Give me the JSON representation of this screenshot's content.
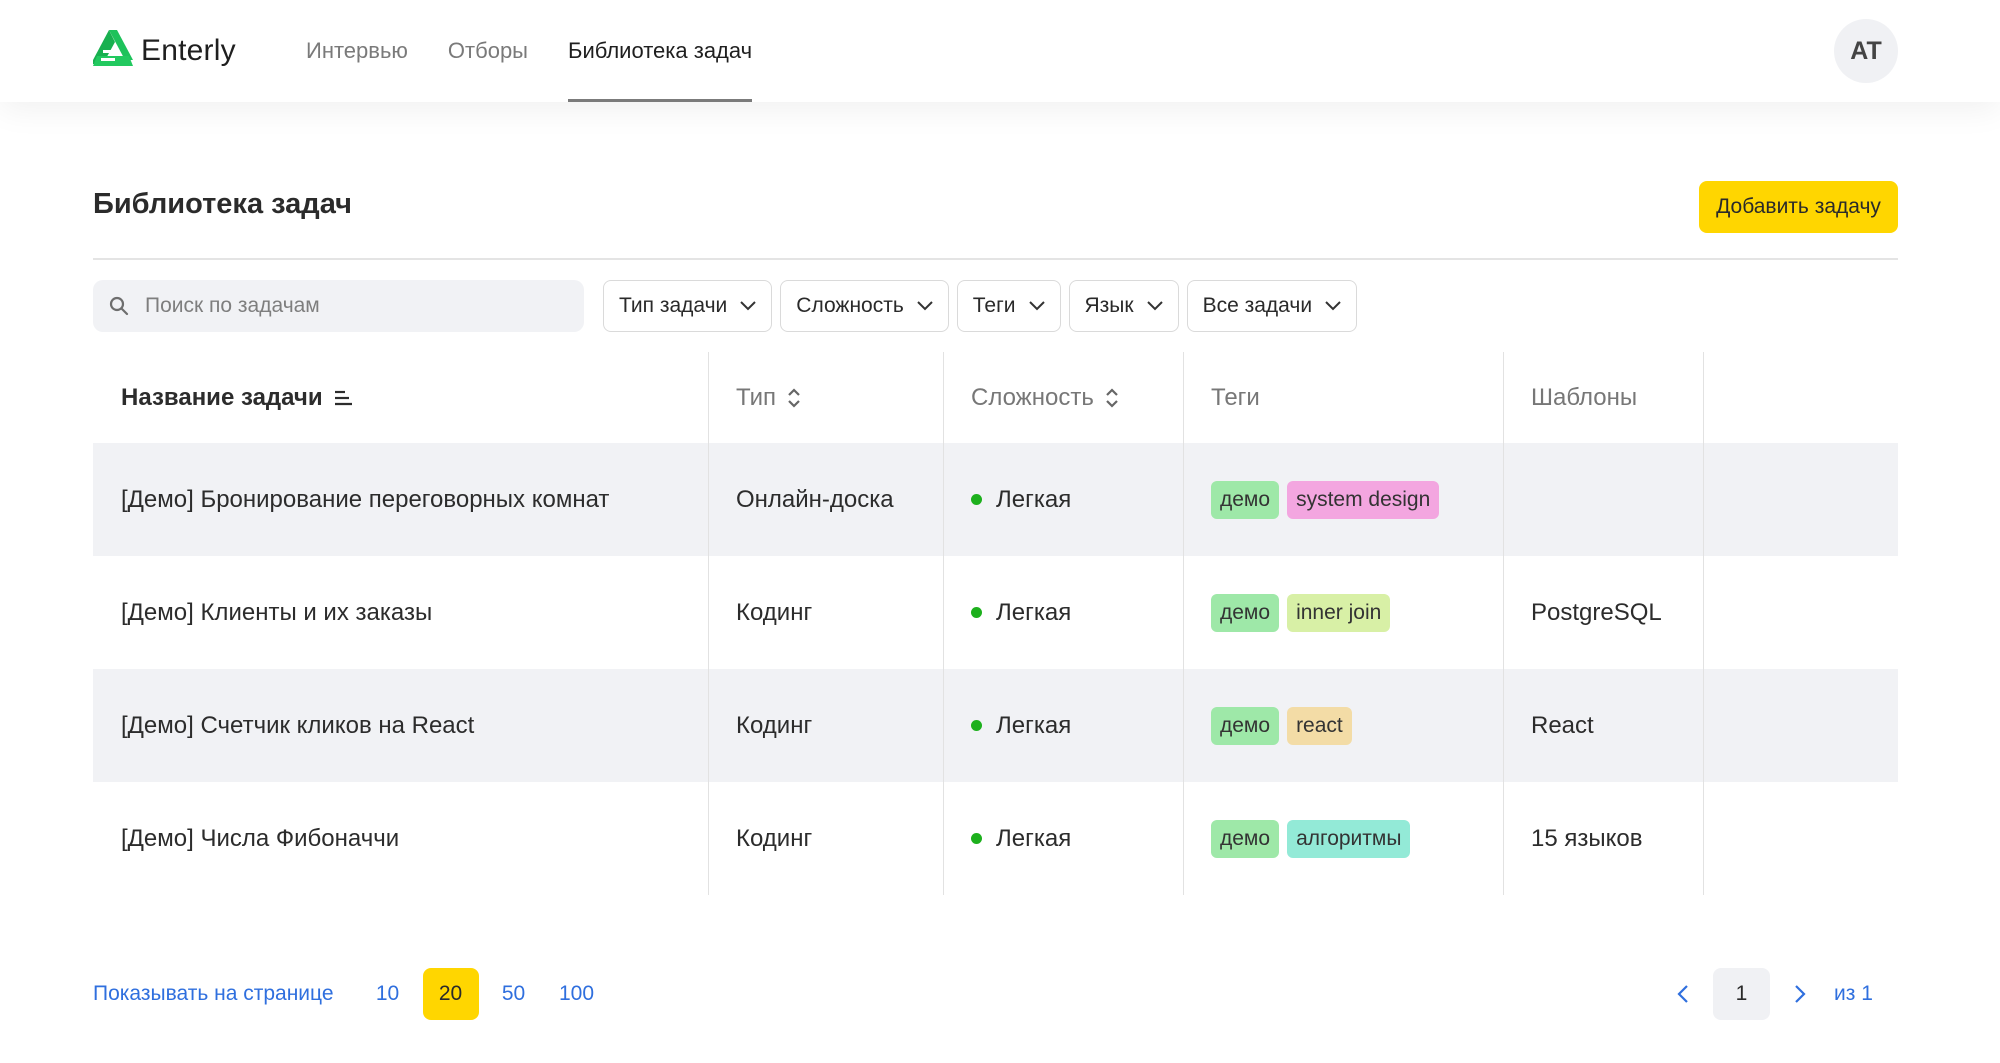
{
  "app": {
    "name": "Enterly",
    "user_initials": "AT"
  },
  "nav": [
    {
      "label": "Интервью"
    },
    {
      "label": "Отборы"
    },
    {
      "label": "Библиотека задач"
    }
  ],
  "page": {
    "title": "Библиотека задач",
    "add_button": "Добавить задачу"
  },
  "search": {
    "placeholder": "Поиск по задачам"
  },
  "filters": [
    {
      "label": "Тип задачи"
    },
    {
      "label": "Сложность"
    },
    {
      "label": "Теги"
    },
    {
      "label": "Язык"
    },
    {
      "label": "Все задачи"
    }
  ],
  "table": {
    "headers": [
      "Название задачи",
      "Тип",
      "Сложность",
      "Теги",
      "Шаблоны"
    ],
    "rows": [
      {
        "name": "[Демо] Бронирование переговорных комнат",
        "type": "Онлайн-доска",
        "difficulty": "Легкая",
        "tags": [
          {
            "label": "демо",
            "color": "#9ee8a8"
          },
          {
            "label": "system design",
            "color": "#f3a6e0"
          }
        ],
        "templates": ""
      },
      {
        "name": "[Демо] Клиенты и их заказы",
        "type": "Кодинг",
        "difficulty": "Легкая",
        "tags": [
          {
            "label": "демо",
            "color": "#9ee8a8"
          },
          {
            "label": "inner join",
            "color": "#d8f0a6"
          }
        ],
        "templates": "PostgreSQL"
      },
      {
        "name": "[Демо] Счетчик кликов на React",
        "type": "Кодинг",
        "difficulty": "Легкая",
        "tags": [
          {
            "label": "демо",
            "color": "#9ee8a8"
          },
          {
            "label": "react",
            "color": "#f3dca6"
          }
        ],
        "templates": "React"
      },
      {
        "name": "[Демо] Числа Фибоначчи",
        "type": "Кодинг",
        "difficulty": "Легкая",
        "tags": [
          {
            "label": "демо",
            "color": "#9ee8a8"
          },
          {
            "label": "алгоритмы",
            "color": "#93ead7"
          }
        ],
        "templates": "15 языков"
      }
    ]
  },
  "pagination": {
    "per_page_label": "Показывать на странице",
    "per_page_options": [
      "10",
      "20",
      "50",
      "100"
    ],
    "per_page_selected": "20",
    "current_page": "1",
    "total_label": "из 1"
  },
  "colors": {
    "accent": "#ffd600",
    "link": "#2f6fde",
    "easy": "#1db01d",
    "shaded_row": "#f1f2f5"
  }
}
